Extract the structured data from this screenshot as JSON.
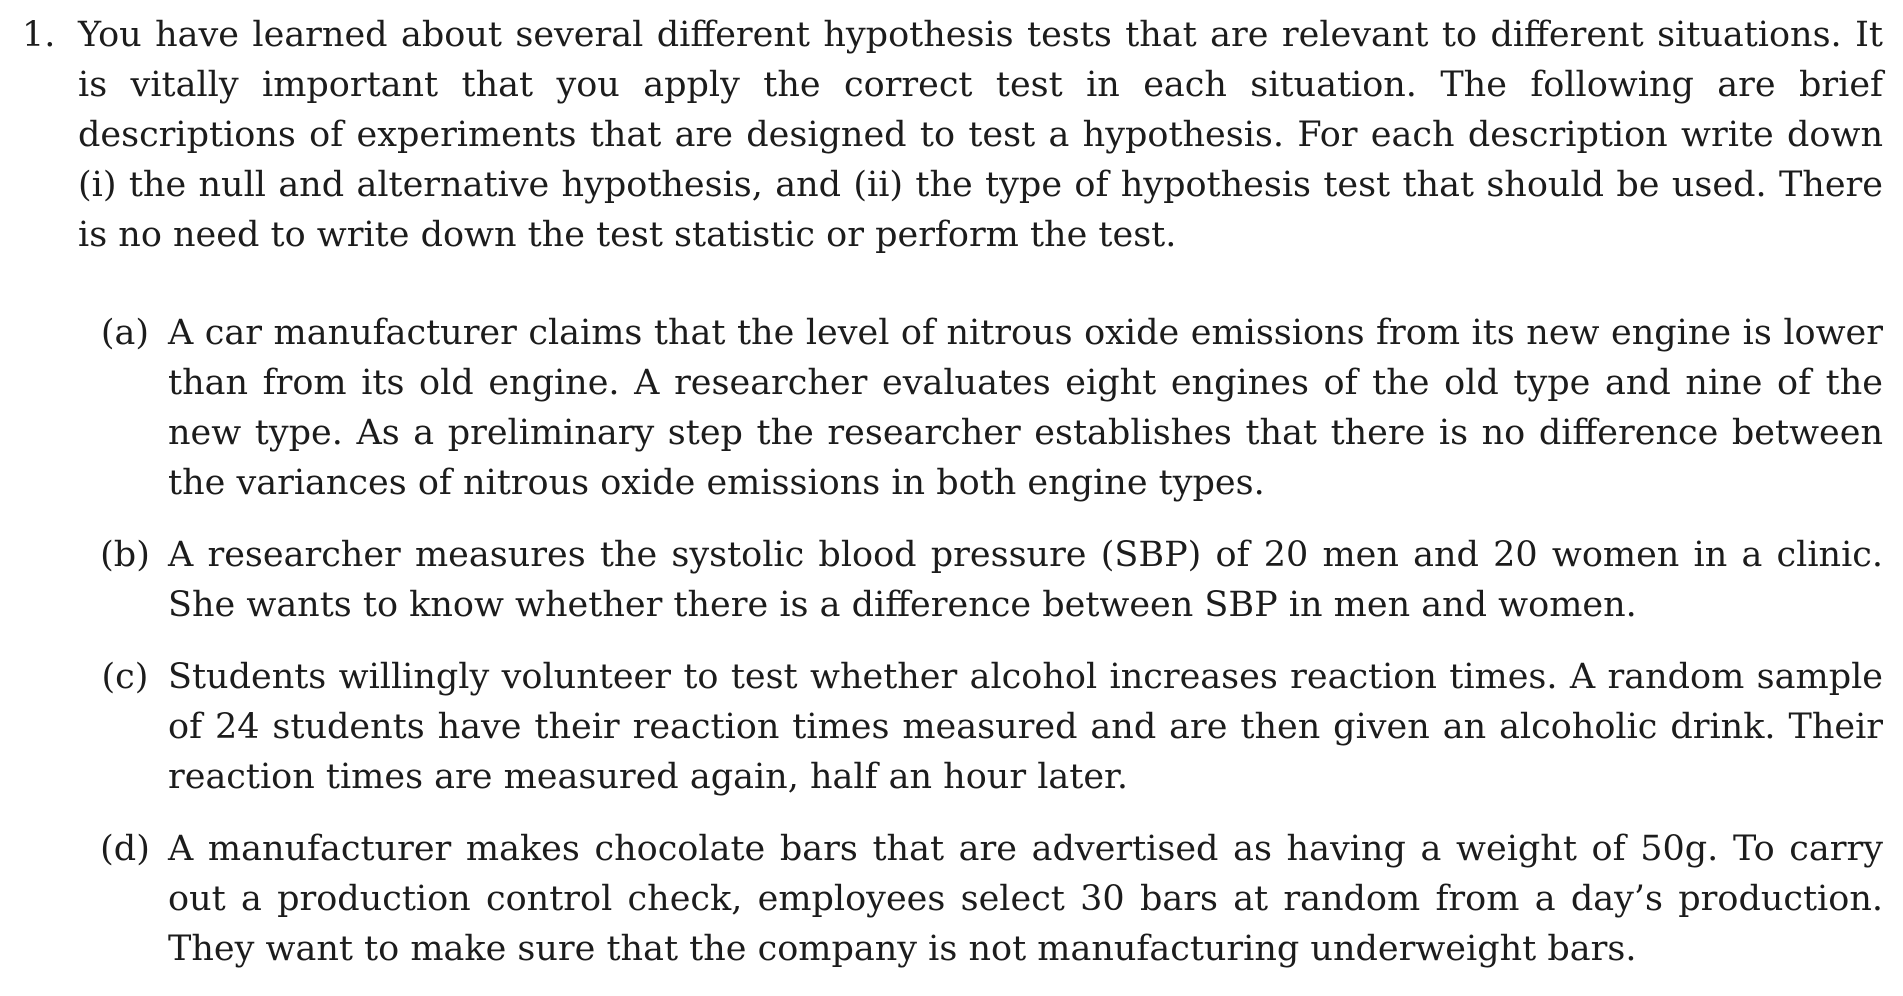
{
  "question": {
    "number": "1.",
    "text": "You have learned about several different hypothesis tests that are relevant to different situations. It is vitally important that you apply the correct test in each situation. The following are brief descriptions of experiments that are designed to test a hypothesis. For each description write down (i) the null and alternative hypothesis, and (ii) the type of hypothesis test that should be used. There is no need to write down the test statistic or perform the test."
  },
  "parts": [
    {
      "label": "(a)",
      "text": "A car manufacturer claims that the level of nitrous oxide emissions from its new engine is lower than from its old engine. A researcher evaluates eight engines of the old type and nine of the new type. As a preliminary step the researcher establishes that there is no difference between the variances of nitrous oxide emissions in both engine types."
    },
    {
      "label": "(b)",
      "text": "A researcher measures the systolic blood pressure (SBP) of 20 men and 20 women in a clinic. She wants to know whether there is a difference between SBP in men and women."
    },
    {
      "label": "(c)",
      "text": "Students willingly volunteer to test whether alcohol increases reaction times. A random sample of 24 students have their reaction times measured and are then given an alcoholic drink. Their reaction times are measured again, half an hour later."
    },
    {
      "label": "(d)",
      "text": "A manufacturer makes chocolate bars that are advertised as having a weight of 50g. To carry out a production control check, employees select 30 bars at random from a day’s production. They want to make sure that the company is not manufacturing underweight bars."
    }
  ]
}
